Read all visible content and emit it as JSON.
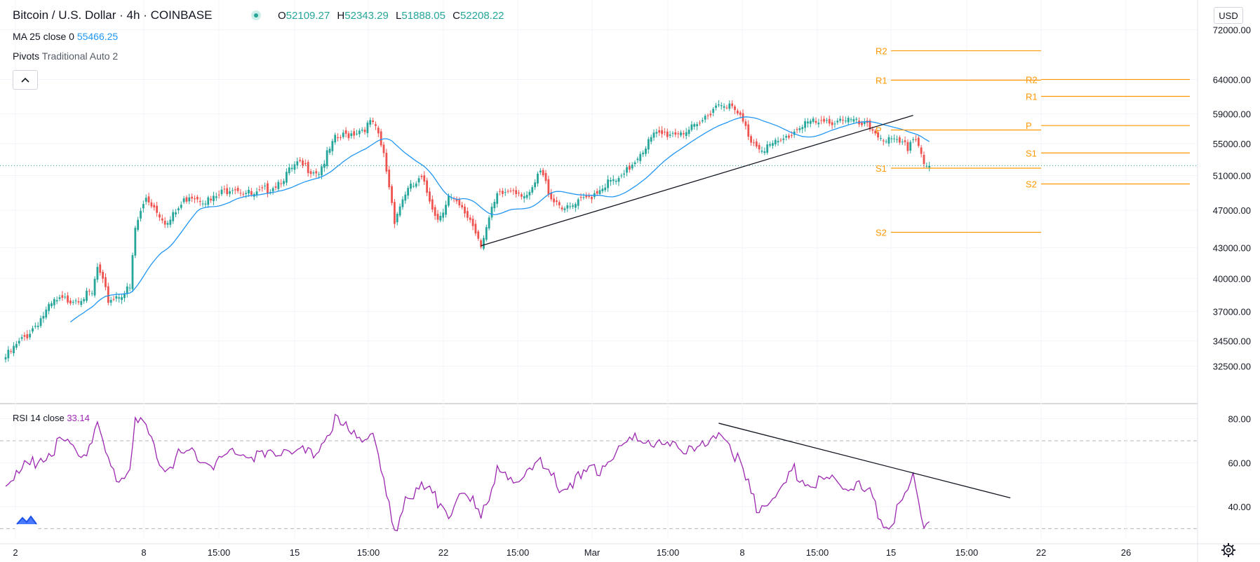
{
  "header": {
    "symbol": "Bitcoin / U.S. Dollar",
    "interval": "4h",
    "exchange": "COINBASE",
    "ohlc": {
      "o_key": "O",
      "o": "52109.27",
      "h_key": "H",
      "h": "52343.29",
      "l_key": "L",
      "l": "51888.05",
      "c_key": "C",
      "c": "52208.22"
    }
  },
  "indicators": {
    "ma": {
      "label": "MA 25 close 0",
      "value": "55466.25"
    },
    "pivots": {
      "label": "Pivots",
      "params": "Traditional Auto 2"
    },
    "rsi": {
      "label": "RSI 14 close",
      "value": "33.14"
    }
  },
  "price_axis": {
    "currency": "USD",
    "ticks": [
      "72000.00",
      "64000.00",
      "59000.00",
      "55000.00",
      "51000.00",
      "47000.00",
      "43000.00",
      "40000.00",
      "37000.00",
      "34500.00",
      "32500.00"
    ]
  },
  "rsi_axis": {
    "ticks": [
      "80.00",
      "60.00",
      "40.00"
    ]
  },
  "time_axis": {
    "ticks": [
      "2",
      "8",
      "15:00",
      "15",
      "15:00",
      "22",
      "15:00",
      "Mar",
      "15:00",
      "8",
      "15:00",
      "15",
      "15:00",
      "22",
      "26"
    ]
  },
  "pivot_labels": {
    "prev": [
      "R2",
      "R1",
      "P",
      "S1",
      "S2"
    ],
    "curr": [
      "R2",
      "R1",
      "P",
      "S1",
      "S2"
    ]
  },
  "colors": {
    "up": "#26a69a",
    "down": "#ef5350",
    "ma": "#2196f3",
    "rsi": "#9c27b0",
    "pivot": "#ff9800",
    "trendline": "#131722",
    "last_price_line": "#26a69a"
  },
  "chart_data": [
    {
      "type": "candlestick",
      "title": "Bitcoin / U.S. Dollar, 4h, COINBASE",
      "x_ticks": [
        "2",
        "8",
        "15:00",
        "15",
        "15:00",
        "22",
        "15:00",
        "Mar",
        "15:00",
        "8",
        "15:00",
        "15",
        "15:00",
        "22",
        "26"
      ],
      "y_scale": "log",
      "ylim": [
        32000,
        73000
      ],
      "close_anchors": [
        {
          "bar": 0,
          "close": 33200
        },
        {
          "bar": 8,
          "close": 35000
        },
        {
          "bar": 18,
          "close": 37800
        },
        {
          "bar": 32,
          "close": 38500
        },
        {
          "bar": 34,
          "close": 41000
        },
        {
          "bar": 38,
          "close": 38000
        },
        {
          "bar": 46,
          "close": 39000
        },
        {
          "bar": 48,
          "close": 45000
        },
        {
          "bar": 52,
          "close": 48500
        },
        {
          "bar": 60,
          "close": 45500
        },
        {
          "bar": 68,
          "close": 48800
        },
        {
          "bar": 76,
          "close": 48000
        },
        {
          "bar": 84,
          "close": 49800
        },
        {
          "bar": 92,
          "close": 48500
        },
        {
          "bar": 100,
          "close": 50000
        },
        {
          "bar": 108,
          "close": 52300
        },
        {
          "bar": 116,
          "close": 51500
        },
        {
          "bar": 122,
          "close": 55500
        },
        {
          "bar": 132,
          "close": 57000
        },
        {
          "bar": 136,
          "close": 57800
        },
        {
          "bar": 138,
          "close": 55800
        },
        {
          "bar": 140,
          "close": 53500
        },
        {
          "bar": 144,
          "close": 46000
        },
        {
          "bar": 148,
          "close": 49000
        },
        {
          "bar": 154,
          "close": 50500
        },
        {
          "bar": 160,
          "close": 46000
        },
        {
          "bar": 164,
          "close": 48500
        },
        {
          "bar": 172,
          "close": 46000
        },
        {
          "bar": 176,
          "close": 43500
        },
        {
          "bar": 182,
          "close": 48500
        },
        {
          "bar": 188,
          "close": 49500
        },
        {
          "bar": 194,
          "close": 48500
        },
        {
          "bar": 198,
          "close": 51500
        },
        {
          "bar": 202,
          "close": 48500
        },
        {
          "bar": 208,
          "close": 47000
        },
        {
          "bar": 216,
          "close": 48500
        },
        {
          "bar": 222,
          "close": 50000
        },
        {
          "bar": 228,
          "close": 50500
        },
        {
          "bar": 234,
          "close": 53500
        },
        {
          "bar": 240,
          "close": 56000
        },
        {
          "bar": 248,
          "close": 56500
        },
        {
          "bar": 256,
          "close": 57000
        },
        {
          "bar": 262,
          "close": 60000
        },
        {
          "bar": 266,
          "close": 60800
        },
        {
          "bar": 272,
          "close": 58500
        },
        {
          "bar": 276,
          "close": 55500
        },
        {
          "bar": 280,
          "close": 54500
        },
        {
          "bar": 286,
          "close": 55000
        },
        {
          "bar": 290,
          "close": 56000
        },
        {
          "bar": 296,
          "close": 58000
        },
        {
          "bar": 302,
          "close": 57500
        },
        {
          "bar": 310,
          "close": 58500
        },
        {
          "bar": 316,
          "close": 57500
        },
        {
          "bar": 320,
          "close": 57000
        },
        {
          "bar": 326,
          "close": 55500
        },
        {
          "bar": 330,
          "close": 55000
        },
        {
          "bar": 334,
          "close": 54500
        },
        {
          "bar": 336,
          "close": 56000
        },
        {
          "bar": 338,
          "close": 55000
        },
        {
          "bar": 340,
          "close": 52500
        },
        {
          "bar": 342,
          "close": 52208
        }
      ],
      "moving_average": {
        "period": 25,
        "last": 55466.25
      },
      "pivots": {
        "prev": {
          "R2": 68500,
          "R1": 63900,
          "P": 56800,
          "S1": 51900,
          "S2": 44600
        },
        "curr": {
          "R2": 64000,
          "R1": 61500,
          "P": 57400,
          "S1": 53800,
          "S2": 50000
        }
      },
      "trendline": [
        {
          "bar": 176,
          "price": 43200
        },
        {
          "bar": 336,
          "price": 58800
        }
      ]
    },
    {
      "type": "line",
      "name": "RSI 14 close",
      "ylim": [
        25,
        85
      ],
      "levels": [
        70,
        30
      ],
      "anchors": [
        {
          "bar": 0,
          "v": 50
        },
        {
          "bar": 10,
          "v": 60
        },
        {
          "bar": 20,
          "v": 68
        },
        {
          "bar": 30,
          "v": 66
        },
        {
          "bar": 34,
          "v": 76
        },
        {
          "bar": 38,
          "v": 60
        },
        {
          "bar": 42,
          "v": 52
        },
        {
          "bar": 46,
          "v": 58
        },
        {
          "bar": 48,
          "v": 79
        },
        {
          "bar": 52,
          "v": 75
        },
        {
          "bar": 58,
          "v": 58
        },
        {
          "bar": 66,
          "v": 64
        },
        {
          "bar": 78,
          "v": 60
        },
        {
          "bar": 86,
          "v": 66
        },
        {
          "bar": 96,
          "v": 62
        },
        {
          "bar": 104,
          "v": 68
        },
        {
          "bar": 114,
          "v": 62
        },
        {
          "bar": 122,
          "v": 80
        },
        {
          "bar": 128,
          "v": 72
        },
        {
          "bar": 136,
          "v": 74
        },
        {
          "bar": 140,
          "v": 50
        },
        {
          "bar": 144,
          "v": 27
        },
        {
          "bar": 148,
          "v": 46
        },
        {
          "bar": 156,
          "v": 48
        },
        {
          "bar": 164,
          "v": 38
        },
        {
          "bar": 170,
          "v": 44
        },
        {
          "bar": 176,
          "v": 38
        },
        {
          "bar": 182,
          "v": 55
        },
        {
          "bar": 188,
          "v": 50
        },
        {
          "bar": 196,
          "v": 62
        },
        {
          "bar": 204,
          "v": 50
        },
        {
          "bar": 212,
          "v": 52
        },
        {
          "bar": 220,
          "v": 58
        },
        {
          "bar": 228,
          "v": 66
        },
        {
          "bar": 236,
          "v": 72
        },
        {
          "bar": 244,
          "v": 66
        },
        {
          "bar": 252,
          "v": 68
        },
        {
          "bar": 260,
          "v": 66
        },
        {
          "bar": 264,
          "v": 76
        },
        {
          "bar": 268,
          "v": 70
        },
        {
          "bar": 272,
          "v": 58
        },
        {
          "bar": 278,
          "v": 40
        },
        {
          "bar": 286,
          "v": 46
        },
        {
          "bar": 292,
          "v": 56
        },
        {
          "bar": 298,
          "v": 50
        },
        {
          "bar": 306,
          "v": 52
        },
        {
          "bar": 314,
          "v": 50
        },
        {
          "bar": 320,
          "v": 45
        },
        {
          "bar": 326,
          "v": 32
        },
        {
          "bar": 332,
          "v": 40
        },
        {
          "bar": 336,
          "v": 53
        },
        {
          "bar": 340,
          "v": 33
        },
        {
          "bar": 342,
          "v": 33.14
        }
      ],
      "trendline": [
        {
          "bar": 264,
          "v": 78
        },
        {
          "bar": 372,
          "v": 44
        }
      ]
    }
  ]
}
